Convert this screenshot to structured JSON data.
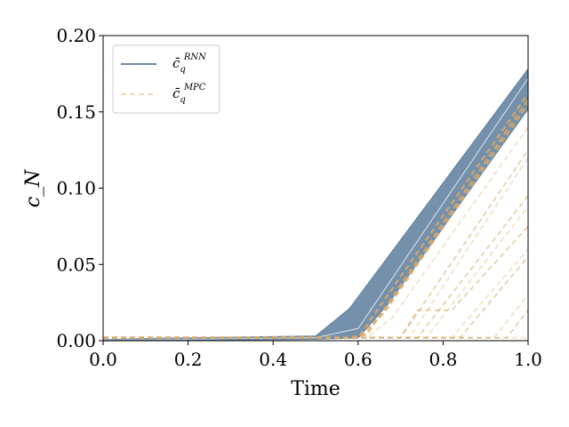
{
  "chart_data": {
    "type": "line",
    "xlabel": "Time",
    "ylabel": "c_N",
    "xlim": [
      0.0,
      1.0
    ],
    "ylim": [
      0.0,
      0.2
    ],
    "xticks": [
      "0.0",
      "0.2",
      "0.4",
      "0.6",
      "0.8",
      "1.0"
    ],
    "yticks": [
      "0.00",
      "0.05",
      "0.10",
      "0.15",
      "0.20"
    ],
    "grid": false,
    "legend_position": "top-left",
    "legend": [
      {
        "label": "c̄",
        "sub": "q",
        "sup": "RNN",
        "style": "solid",
        "color": "#6d8aa6"
      },
      {
        "label": "c̄",
        "sub": "q",
        "sup": "MPC",
        "style": "dashed",
        "color": "#d7a96a"
      }
    ],
    "rnn_band": {
      "name": "c̄_q^RNN",
      "upper": [
        [
          0.0,
          0.0005
        ],
        [
          0.05,
          0.001
        ],
        [
          0.15,
          0.0015
        ],
        [
          0.5,
          0.003
        ],
        [
          0.58,
          0.021
        ],
        [
          1.0,
          0.178
        ]
      ],
      "lower": [
        [
          0.0,
          0.0
        ],
        [
          0.5,
          0.001
        ],
        [
          0.6,
          0.002
        ],
        [
          0.67,
          0.024
        ],
        [
          1.0,
          0.152
        ]
      ]
    },
    "rnn_series": [
      [
        [
          0.0,
          0.0005
        ],
        [
          0.05,
          0.001
        ],
        [
          0.15,
          0.0015
        ],
        [
          0.5,
          0.003
        ],
        [
          0.58,
          0.021
        ],
        [
          1.0,
          0.178
        ]
      ],
      [
        [
          0.0,
          0.0003
        ],
        [
          0.5,
          0.002
        ],
        [
          0.6,
          0.008
        ],
        [
          1.0,
          0.172
        ]
      ],
      [
        [
          0.0,
          0.0
        ],
        [
          0.5,
          0.001
        ],
        [
          0.6,
          0.002
        ],
        [
          0.67,
          0.024
        ],
        [
          1.0,
          0.152
        ]
      ]
    ],
    "mpc_series": [
      [
        [
          0.0,
          0.002
        ],
        [
          0.55,
          0.002
        ],
        [
          0.6,
          0.002
        ],
        [
          1.0,
          0.162
        ]
      ],
      [
        [
          0.0,
          0.002
        ],
        [
          0.58,
          0.002
        ],
        [
          0.62,
          0.004
        ],
        [
          1.0,
          0.158
        ]
      ],
      [
        [
          0.0,
          0.002
        ],
        [
          0.6,
          0.002
        ],
        [
          0.66,
          0.018
        ],
        [
          1.0,
          0.155
        ]
      ],
      [
        [
          0.0,
          0.002
        ],
        [
          0.62,
          0.002
        ],
        [
          0.68,
          0.015
        ],
        [
          1.0,
          0.14
        ]
      ],
      [
        [
          0.0,
          0.002
        ],
        [
          0.64,
          0.002
        ],
        [
          0.7,
          0.002
        ],
        [
          1.0,
          0.125
        ]
      ],
      [
        [
          0.0,
          0.002
        ],
        [
          0.66,
          0.002
        ],
        [
          0.72,
          0.002
        ],
        [
          1.0,
          0.12
        ]
      ],
      [
        [
          0.0,
          0.002
        ],
        [
          0.68,
          0.002
        ],
        [
          0.74,
          0.002
        ],
        [
          1.0,
          0.095
        ]
      ],
      [
        [
          0.0,
          0.002
        ],
        [
          0.7,
          0.002
        ],
        [
          0.76,
          0.002
        ],
        [
          1.0,
          0.088
        ]
      ],
      [
        [
          0.0,
          0.002
        ],
        [
          0.7,
          0.002
        ],
        [
          0.74,
          0.02
        ],
        [
          0.82,
          0.02
        ],
        [
          1.0,
          0.075
        ]
      ],
      [
        [
          0.0,
          0.002
        ],
        [
          0.75,
          0.002
        ],
        [
          0.82,
          0.002
        ],
        [
          1.0,
          0.06
        ]
      ],
      [
        [
          0.0,
          0.002
        ],
        [
          0.78,
          0.002
        ],
        [
          0.84,
          0.002
        ],
        [
          1.0,
          0.055
        ]
      ],
      [
        [
          0.0,
          0.002
        ],
        [
          0.85,
          0.002
        ],
        [
          0.92,
          0.002
        ],
        [
          1.0,
          0.03
        ]
      ],
      [
        [
          0.0,
          0.002
        ],
        [
          0.88,
          0.002
        ],
        [
          0.95,
          0.002
        ],
        [
          1.0,
          0.02
        ]
      ],
      [
        [
          0.0,
          0.002
        ],
        [
          1.0,
          0.002
        ]
      ]
    ]
  }
}
